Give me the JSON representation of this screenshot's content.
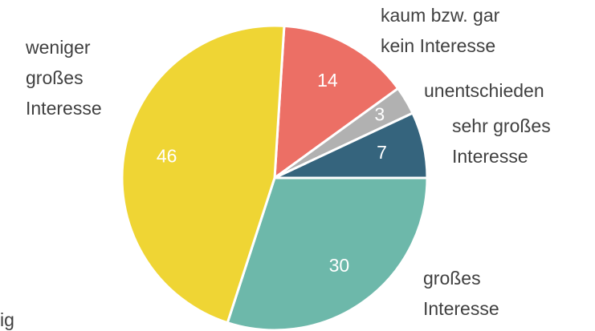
{
  "chart_data": {
    "type": "pie",
    "categories": [
      "kaum bzw. gar kein Interesse",
      "unentschieden",
      "sehr großes Interesse",
      "großes Interesse",
      "weniger großes Interesse"
    ],
    "values": [
      14,
      3,
      7,
      30,
      46
    ],
    "colors": [
      "#ec6f65",
      "#b1b1b1",
      "#35647d",
      "#6db8aa",
      "#efd534"
    ],
    "annotation": "ig"
  }
}
